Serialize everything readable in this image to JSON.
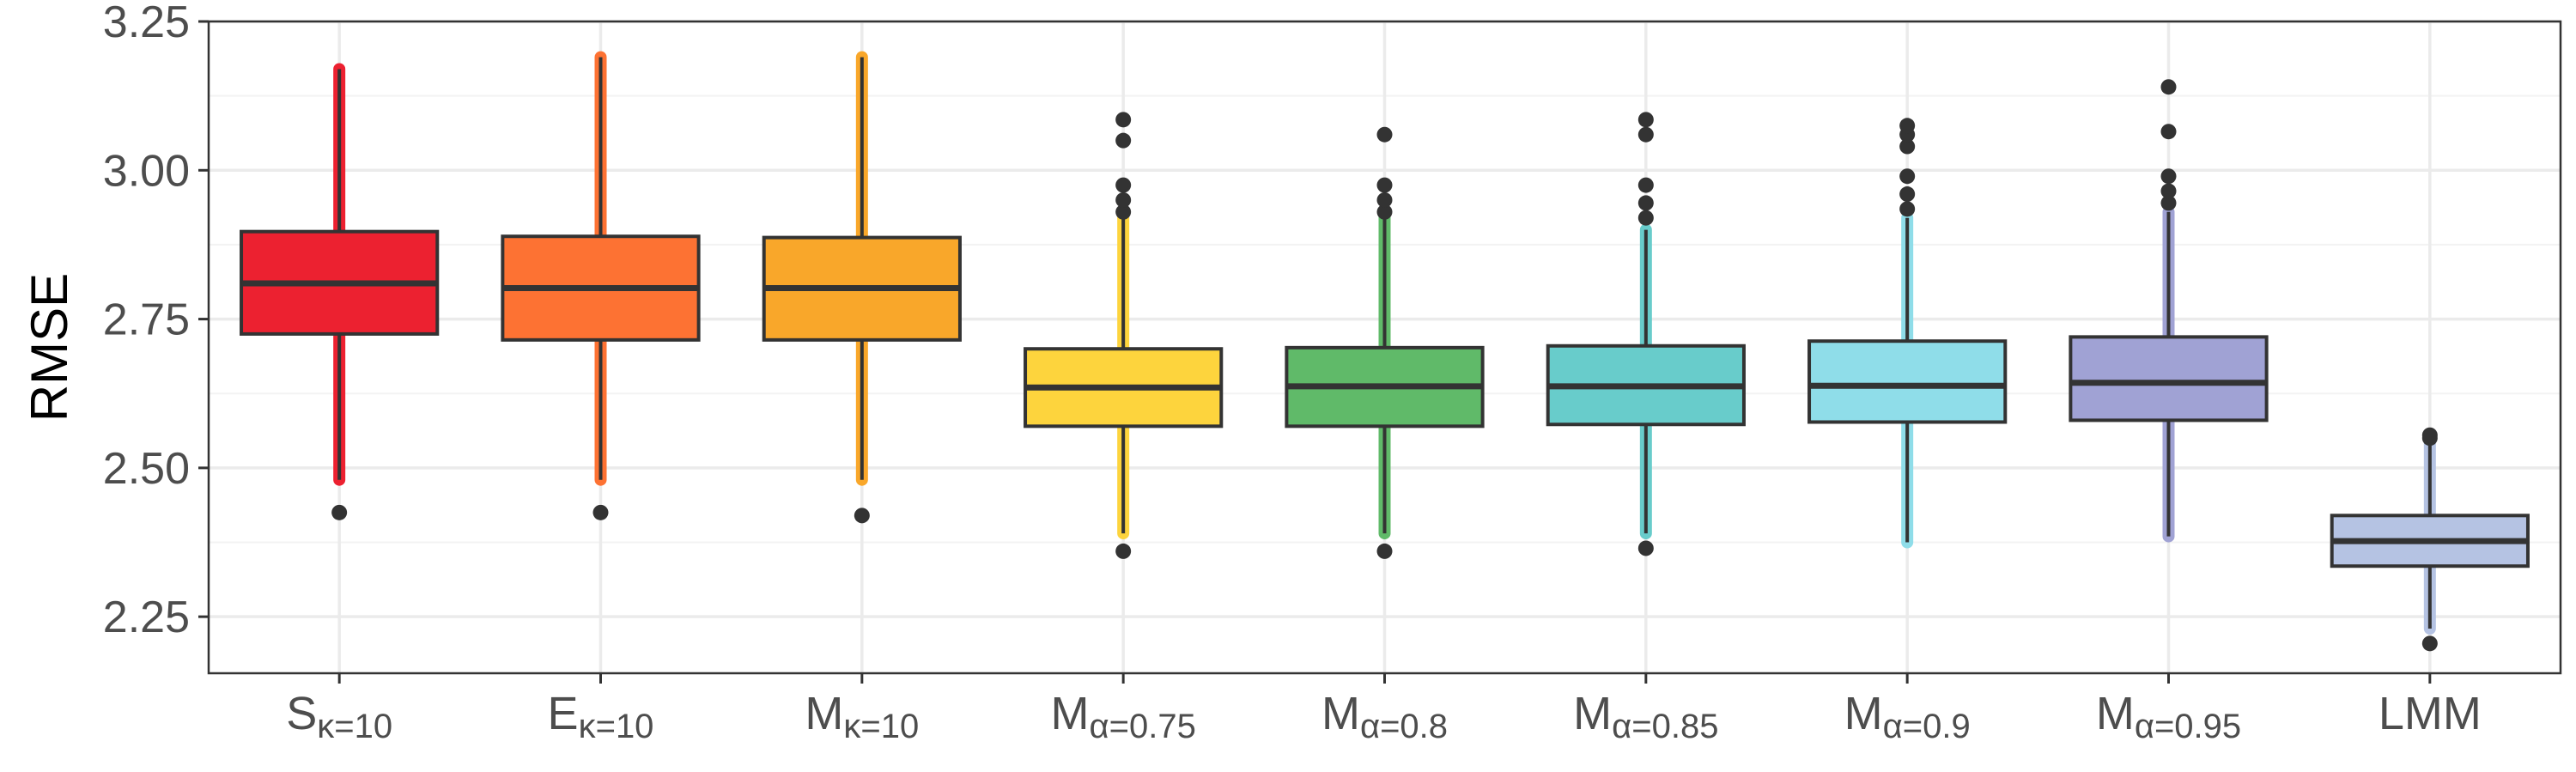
{
  "chart_data": {
    "type": "boxplot",
    "title": "",
    "xlabel": "",
    "ylabel": "RMSE",
    "ylim": [
      2.155,
      3.25
    ],
    "yticks": [
      "2.25",
      "2.50",
      "2.75",
      "3.00",
      "3.25"
    ],
    "ytick_values": [
      2.25,
      2.5,
      2.75,
      3.0,
      3.25
    ],
    "grid": true,
    "legend": "none",
    "categories": [
      {
        "main": "S",
        "sub": "κ=10"
      },
      {
        "main": "E",
        "sub": "κ=10"
      },
      {
        "main": "M",
        "sub": "κ=10"
      },
      {
        "main": "M",
        "sub": "α=0.75"
      },
      {
        "main": "M",
        "sub": "α=0.8"
      },
      {
        "main": "M",
        "sub": "α=0.85"
      },
      {
        "main": "M",
        "sub": "α=0.9"
      },
      {
        "main": "M",
        "sub": "α=0.95"
      },
      {
        "main": "LMM",
        "sub": ""
      }
    ],
    "boxes": [
      {
        "q1": 2.725,
        "median": 2.81,
        "q3": 2.897,
        "whisker_low": 2.48,
        "whisker_high": 3.17,
        "outliers": [
          2.425
        ],
        "color": "#ec2130"
      },
      {
        "q1": 2.715,
        "median": 2.802,
        "q3": 2.889,
        "whisker_low": 2.48,
        "whisker_high": 3.19,
        "outliers": [
          2.425
        ],
        "color": "#fd7233"
      },
      {
        "q1": 2.715,
        "median": 2.802,
        "q3": 2.887,
        "whisker_low": 2.48,
        "whisker_high": 3.19,
        "outliers": [
          2.42
        ],
        "color": "#f9a72a"
      },
      {
        "q1": 2.57,
        "median": 2.635,
        "q3": 2.7,
        "whisker_low": 2.39,
        "whisker_high": 2.92,
        "outliers": [
          2.36,
          2.93,
          2.95,
          2.975,
          3.05,
          3.085
        ],
        "color": "#fdd43d"
      },
      {
        "q1": 2.57,
        "median": 2.637,
        "q3": 2.702,
        "whisker_low": 2.39,
        "whisker_high": 2.92,
        "outliers": [
          2.36,
          2.93,
          2.95,
          2.975,
          3.06
        ],
        "color": "#60ba69"
      },
      {
        "q1": 2.573,
        "median": 2.637,
        "q3": 2.705,
        "whisker_low": 2.39,
        "whisker_high": 2.9,
        "outliers": [
          2.365,
          2.92,
          2.945,
          2.975,
          3.06,
          3.085
        ],
        "color": "#68cccb"
      },
      {
        "q1": 2.577,
        "median": 2.638,
        "q3": 2.713,
        "whisker_low": 2.375,
        "whisker_high": 2.92,
        "outliers": [
          2.935,
          2.96,
          2.99,
          3.04,
          3.06,
          3.075
        ],
        "color": "#8fdde9"
      },
      {
        "q1": 2.58,
        "median": 2.643,
        "q3": 2.72,
        "whisker_low": 2.385,
        "whisker_high": 2.93,
        "outliers": [
          2.945,
          2.965,
          2.99,
          3.065,
          3.14
        ],
        "color": "#a0a2d4"
      },
      {
        "q1": 2.335,
        "median": 2.377,
        "q3": 2.42,
        "whisker_low": 2.23,
        "whisker_high": 2.545,
        "outliers": [
          2.205,
          2.55,
          2.555
        ],
        "color": "#b5c3e3"
      }
    ]
  }
}
